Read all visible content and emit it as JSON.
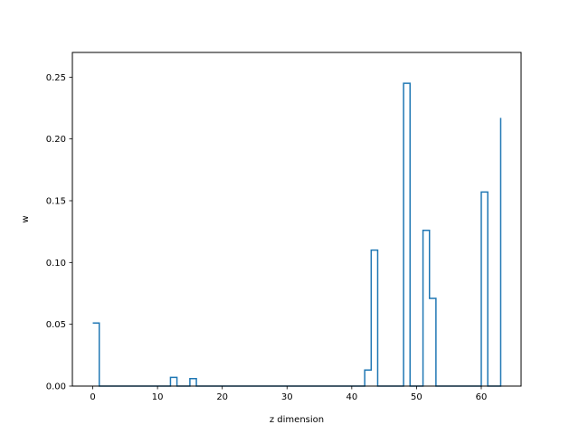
{
  "chart_data": {
    "type": "line",
    "style": "steps-post",
    "title": "",
    "xlabel": "z dimension",
    "ylabel": "w",
    "xlim": [
      -3.15,
      66.15
    ],
    "ylim": [
      0,
      0.27
    ],
    "xticks": [
      0,
      10,
      20,
      30,
      40,
      50,
      60
    ],
    "yticks": [
      0.0,
      0.05,
      0.1,
      0.15,
      0.2,
      0.25
    ],
    "xtick_labels": [
      "0",
      "10",
      "20",
      "30",
      "40",
      "50",
      "60"
    ],
    "ytick_labels": [
      "0.00",
      "0.05",
      "0.10",
      "0.15",
      "0.20",
      "0.25"
    ],
    "grid": false,
    "legend": "none",
    "series": [
      {
        "color": "#1f77b4",
        "x": [
          0,
          1,
          2,
          3,
          4,
          5,
          6,
          7,
          8,
          9,
          10,
          11,
          12,
          13,
          14,
          15,
          16,
          17,
          18,
          19,
          20,
          21,
          22,
          23,
          24,
          25,
          26,
          27,
          28,
          29,
          30,
          31,
          32,
          33,
          34,
          35,
          36,
          37,
          38,
          39,
          40,
          41,
          42,
          43,
          44,
          45,
          46,
          47,
          48,
          49,
          50,
          51,
          52,
          53,
          54,
          55,
          56,
          57,
          58,
          59,
          60,
          61,
          62,
          63
        ],
        "y": [
          0.051,
          0,
          0,
          0,
          0,
          0,
          0,
          0,
          0,
          0,
          0,
          0,
          0.007,
          0,
          0,
          0.006,
          0,
          0,
          0,
          0,
          0,
          0,
          0,
          0,
          0,
          0,
          0,
          0,
          0,
          0,
          0,
          0,
          0,
          0,
          0,
          0,
          0,
          0,
          0,
          0,
          0,
          0,
          0.013,
          0.11,
          0,
          0,
          0,
          0,
          0.245,
          0,
          0,
          0.126,
          0.071,
          0,
          0,
          0,
          0,
          0,
          0,
          0,
          0.157,
          0,
          0,
          0.217
        ]
      }
    ]
  }
}
